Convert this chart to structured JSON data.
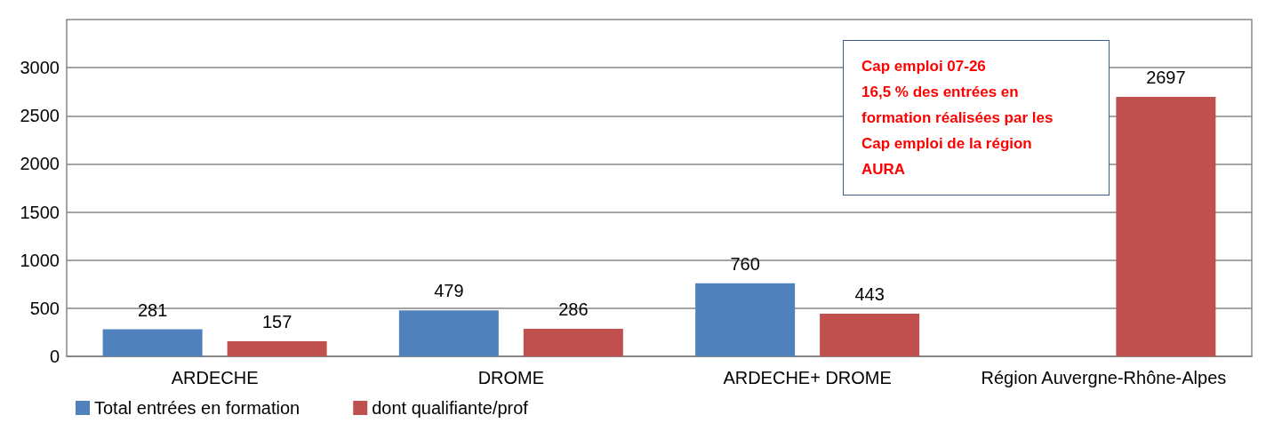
{
  "chart_data": {
    "type": "bar",
    "categories": [
      "ARDECHE",
      "DROME",
      "ARDECHE+ DROME",
      "Région Auvergne-Rhône-Alpes"
    ],
    "series": [
      {
        "name": "Total entrées en formation",
        "color": "#4f81bd",
        "values": [
          281,
          479,
          760,
          null
        ]
      },
      {
        "name": "dont qualifiante/prof",
        "color": "#c0504d",
        "values": [
          157,
          286,
          443,
          2697
        ]
      }
    ],
    "ylim": [
      0,
      3500
    ],
    "yticks": [
      0,
      500,
      1000,
      1500,
      2000,
      2500,
      3000
    ],
    "grid": "y",
    "legend": "bottom left",
    "data_labels": true,
    "annotations": [
      "Cap emploi 07-26\n16,5 % des entrées en\nformation réalisées par les\nCap emploi de la région\nAURA"
    ]
  }
}
